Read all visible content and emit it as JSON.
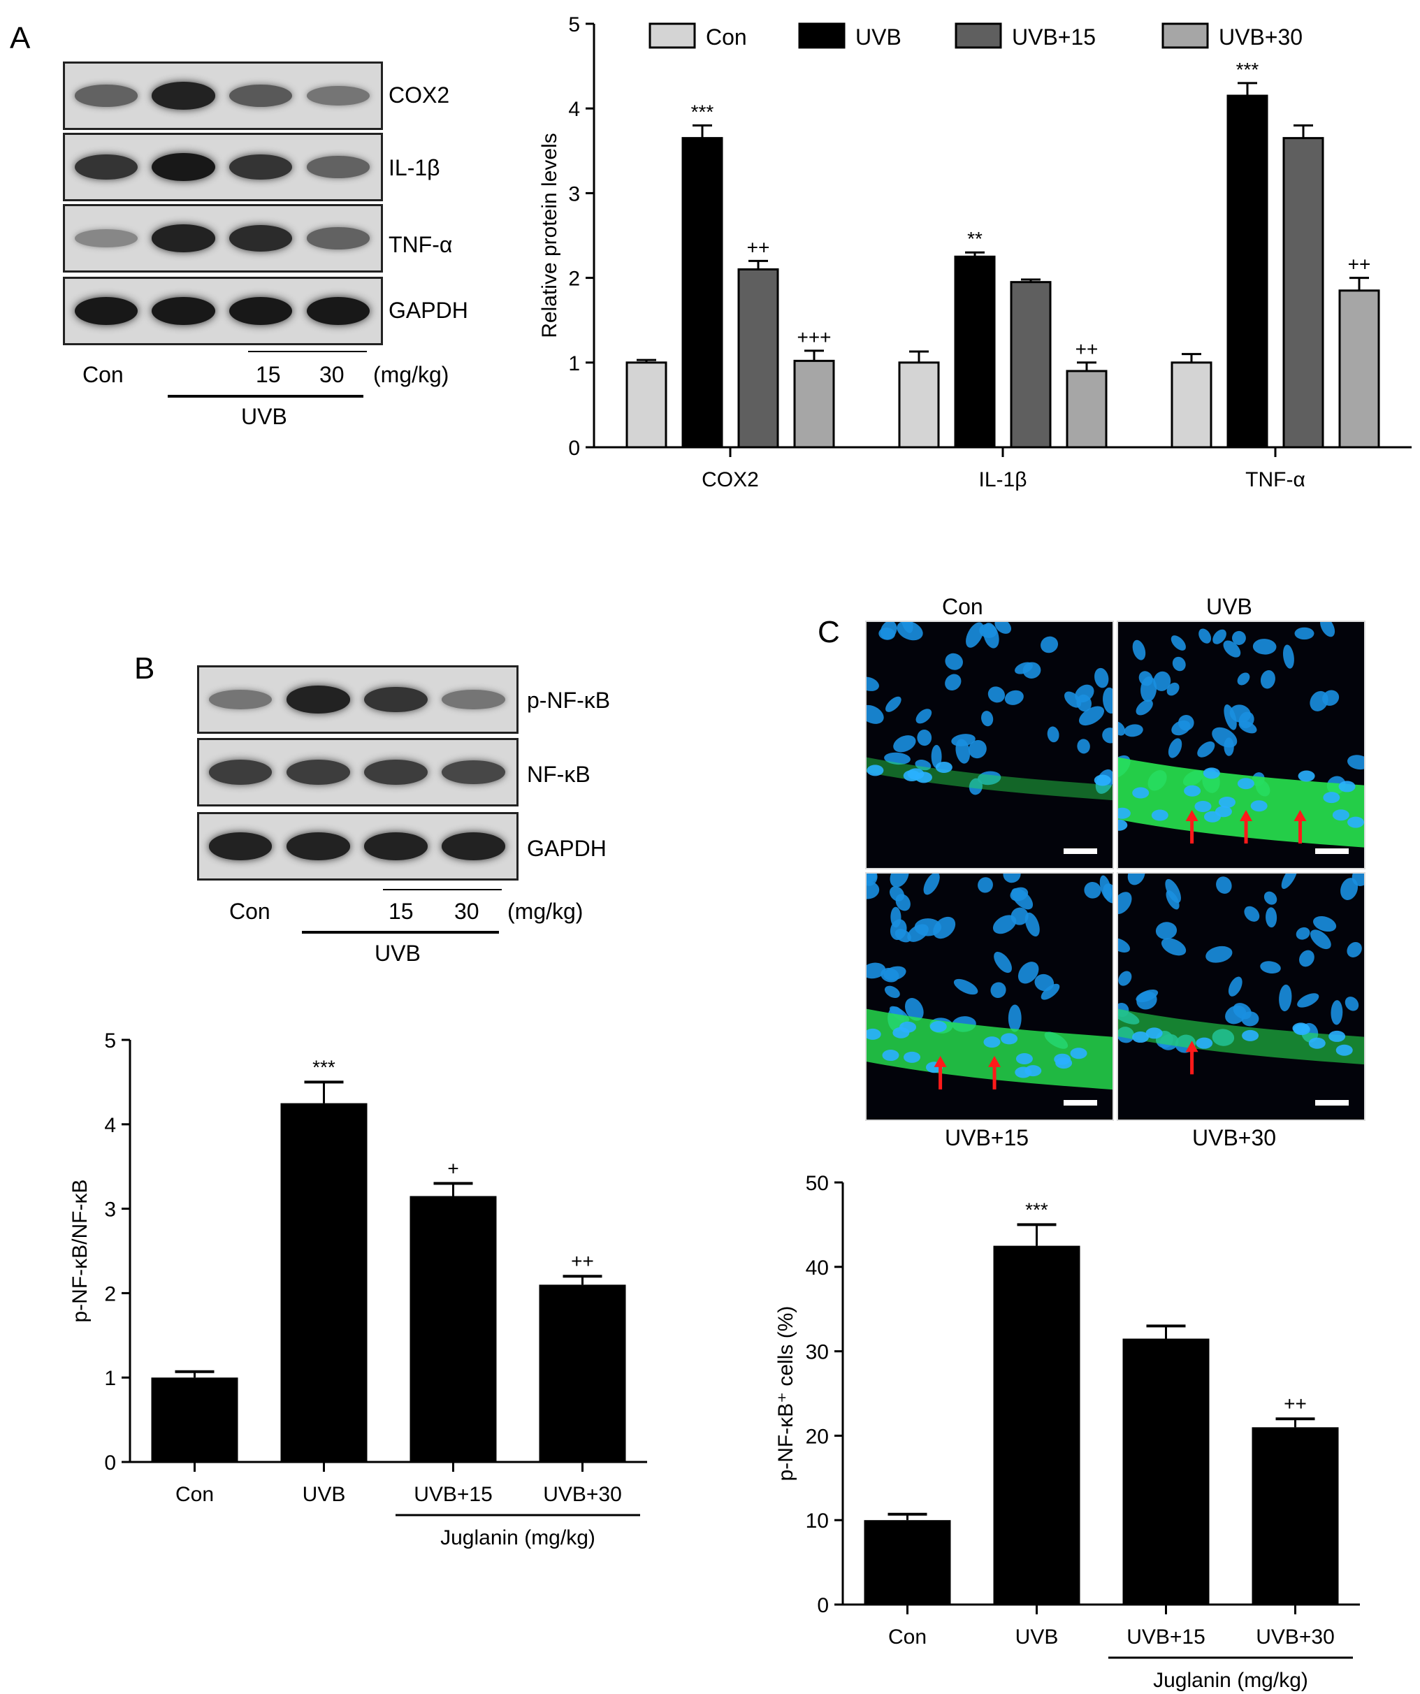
{
  "panels": {
    "a": "A",
    "b": "B",
    "c": "C"
  },
  "blot_a": {
    "rows": [
      {
        "label": "COX2",
        "intensity": [
          0.55,
          0.9,
          0.6,
          0.45
        ]
      },
      {
        "label": "IL-1β",
        "intensity": [
          0.8,
          0.95,
          0.8,
          0.55
        ]
      },
      {
        "label": "TNF-α",
        "intensity": [
          0.35,
          0.9,
          0.85,
          0.55
        ]
      },
      {
        "label": "GAPDH",
        "intensity": [
          0.95,
          0.95,
          0.95,
          0.95
        ]
      }
    ],
    "lanes": {
      "con": "Con",
      "d15": "15",
      "d30": "30",
      "unit": "(mg/kg)",
      "uvb": "UVB"
    }
  },
  "blot_b": {
    "rows": [
      {
        "label": "p-NF-κB",
        "intensity": [
          0.45,
          0.9,
          0.8,
          0.45
        ]
      },
      {
        "label": "NF-κB",
        "intensity": [
          0.75,
          0.75,
          0.75,
          0.7
        ]
      },
      {
        "label": "GAPDH",
        "intensity": [
          0.9,
          0.9,
          0.9,
          0.9
        ]
      }
    ],
    "lanes": {
      "con": "Con",
      "d15": "15",
      "d30": "30",
      "unit": "(mg/kg)",
      "uvb": "UVB"
    }
  },
  "micrographs": [
    {
      "label": "Con",
      "green_level": 0.15
    },
    {
      "label": "UVB",
      "green_level": 0.9
    },
    {
      "label": "UVB+15",
      "green_level": 0.75
    },
    {
      "label": "UVB+30",
      "green_level": 0.35
    }
  ],
  "colors": {
    "con": "#d4d4d4",
    "uvb": "#000000",
    "uvb15": "#5f5f5f",
    "uvb30": "#a6a6a6",
    "bar": "#000000"
  },
  "chart_data": [
    {
      "type": "bar",
      "categories": [
        "COX2",
        "IL-1β",
        "TNF-α"
      ],
      "series": [
        {
          "name": "Con",
          "values": [
            1.0,
            1.0,
            1.0
          ],
          "errors": [
            0.03,
            0.13,
            0.1
          ],
          "annotations": [
            "",
            "",
            ""
          ]
        },
        {
          "name": "UVB",
          "values": [
            3.65,
            2.25,
            4.15
          ],
          "errors": [
            0.15,
            0.05,
            0.15
          ],
          "annotations": [
            "***",
            "**",
            "***"
          ]
        },
        {
          "name": "UVB+15",
          "values": [
            2.1,
            1.95,
            3.65
          ],
          "errors": [
            0.1,
            0.03,
            0.15
          ],
          "annotations": [
            "++",
            "",
            ""
          ]
        },
        {
          "name": "UVB+30",
          "values": [
            1.02,
            0.9,
            1.85
          ],
          "errors": [
            0.12,
            0.1,
            0.15
          ],
          "annotations": [
            "+++",
            "++",
            "++"
          ]
        }
      ],
      "ylabel": "Relative protein levels",
      "ylim": [
        0,
        5
      ],
      "yticks": [
        0,
        1,
        2,
        3,
        4,
        5
      ],
      "legend": "top"
    },
    {
      "type": "bar",
      "categories": [
        "Con",
        "UVB",
        "UVB+15",
        "UVB+30"
      ],
      "values": [
        1.0,
        4.25,
        3.15,
        2.1
      ],
      "errors": [
        0.07,
        0.25,
        0.15,
        0.1
      ],
      "annotations": [
        "",
        "***",
        "+",
        "++"
      ],
      "ylabel": "p-NF-κB/NF-κB",
      "group_label": "Juglanin (mg/kg)",
      "ylim": [
        0,
        5
      ],
      "yticks": [
        0,
        1,
        2,
        3,
        4,
        5
      ]
    },
    {
      "type": "bar",
      "categories": [
        "Con",
        "UVB",
        "UVB+15",
        "UVB+30"
      ],
      "values": [
        10,
        42.5,
        31.5,
        21
      ],
      "errors": [
        0.7,
        2.5,
        1.5,
        1.0
      ],
      "annotations": [
        "",
        "***",
        "",
        "++"
      ],
      "ylabel": "p-NF-κB⁺ cells (%)",
      "group_label": "Juglanin (mg/kg)",
      "ylim": [
        0,
        50
      ],
      "yticks": [
        0,
        10,
        20,
        30,
        40,
        50
      ]
    }
  ]
}
